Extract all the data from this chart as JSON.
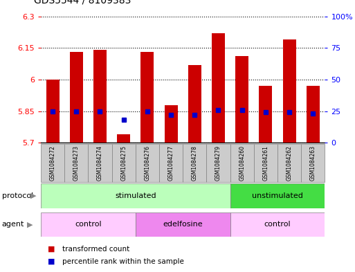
{
  "title": "GDS5544 / 8109383",
  "samples": [
    "GSM1084272",
    "GSM1084273",
    "GSM1084274",
    "GSM1084275",
    "GSM1084276",
    "GSM1084277",
    "GSM1084278",
    "GSM1084279",
    "GSM1084260",
    "GSM1084261",
    "GSM1084262",
    "GSM1084263"
  ],
  "transformed_counts": [
    6.0,
    6.13,
    6.14,
    5.74,
    6.13,
    5.88,
    6.07,
    6.22,
    6.11,
    5.97,
    6.19,
    5.97
  ],
  "percentile_ranks": [
    25,
    25,
    25,
    18,
    25,
    22,
    22,
    26,
    26,
    24,
    24,
    23
  ],
  "bar_bottom": 5.7,
  "ylim_left": [
    5.7,
    6.3
  ],
  "ylim_right": [
    0,
    100
  ],
  "yticks_left": [
    5.7,
    5.85,
    6.0,
    6.15,
    6.3
  ],
  "yticks_right": [
    0,
    25,
    50,
    75,
    100
  ],
  "ytick_labels_left": [
    "5.7",
    "5.85",
    "6",
    "6.15",
    "6.3"
  ],
  "ytick_labels_right": [
    "0",
    "25",
    "50",
    "75",
    "100%"
  ],
  "bar_color": "#cc0000",
  "dot_color": "#0000cc",
  "protocol_groups": [
    {
      "label": "stimulated",
      "start": 0,
      "end": 8,
      "color": "#bbffbb"
    },
    {
      "label": "unstimulated",
      "start": 8,
      "end": 12,
      "color": "#44dd44"
    }
  ],
  "agent_groups": [
    {
      "label": "control",
      "start": 0,
      "end": 4,
      "color": "#ffccff"
    },
    {
      "label": "edelfosine",
      "start": 4,
      "end": 8,
      "color": "#ee88ee"
    },
    {
      "label": "control",
      "start": 8,
      "end": 12,
      "color": "#ffccff"
    }
  ],
  "legend_red_label": "transformed count",
  "legend_blue_label": "percentile rank within the sample",
  "protocol_label": "protocol",
  "agent_label": "agent"
}
